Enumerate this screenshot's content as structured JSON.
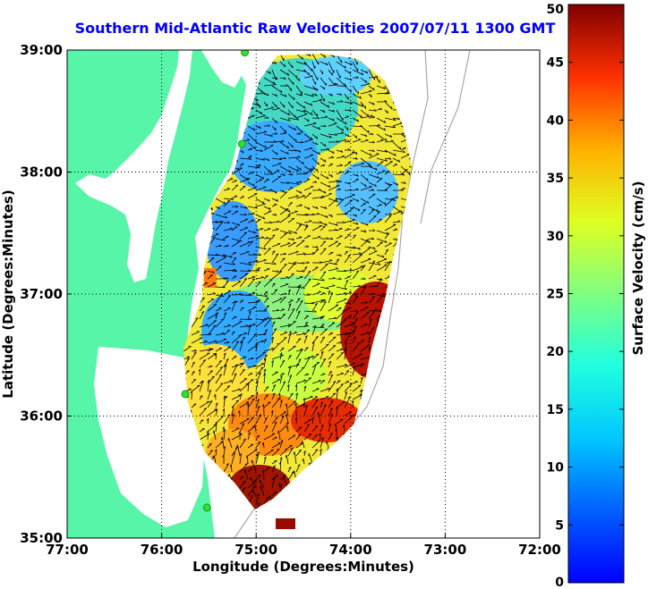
{
  "title": "Southern Mid-Atlantic Raw Velocities 2007/07/11 1300 GMT",
  "x_axis": {
    "label": "Longitude (Degrees:Minutes)",
    "ticks": [
      {
        "lon": -77,
        "label": "77:00"
      },
      {
        "lon": -76,
        "label": "76:00"
      },
      {
        "lon": -75,
        "label": "75:00"
      },
      {
        "lon": -74,
        "label": "74:00"
      },
      {
        "lon": -73,
        "label": "73:00"
      },
      {
        "lon": -72,
        "label": "72:00"
      }
    ]
  },
  "y_axis": {
    "label": "Latitude (Degrees:Minutes)",
    "ticks": [
      {
        "lat": 39,
        "label": "39:00"
      },
      {
        "lat": 38,
        "label": "38:00"
      },
      {
        "lat": 37,
        "label": "37:00"
      },
      {
        "lat": 36,
        "label": "36:00"
      },
      {
        "lat": 35,
        "label": "35:00"
      }
    ]
  },
  "colorbar": {
    "label": "Surface Velocity (cm/s)",
    "min": 0,
    "max": 50,
    "ticks": [
      "0",
      "5",
      "10",
      "15",
      "20",
      "25",
      "30",
      "35",
      "40",
      "45",
      "50"
    ]
  },
  "map_extent": {
    "lon_min": -77,
    "lon_max": -72,
    "lat_min": 35,
    "lat_max": 39
  },
  "colors": {
    "land": "#56f5a8",
    "water": "#ffffff",
    "title": "#0000ff",
    "station_marker": "#33dd33",
    "vector": "#000000"
  },
  "hf_radar_stations": [
    {
      "lon": -75.12,
      "lat": 38.98
    },
    {
      "lon": -75.15,
      "lat": 38.23
    },
    {
      "lon": -75.75,
      "lat": 36.18
    },
    {
      "lon": -75.52,
      "lat": 35.25
    }
  ]
}
